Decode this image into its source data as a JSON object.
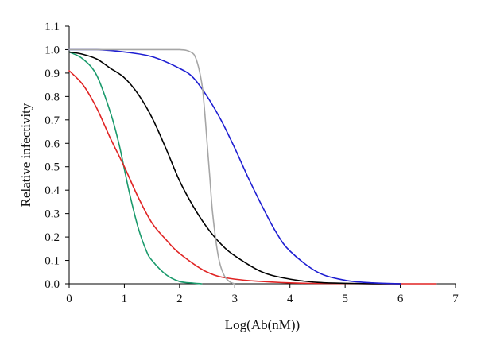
{
  "chart_data": {
    "type": "line",
    "title": "",
    "xlabel": "Log(Ab(nM))",
    "ylabel": "Relative infectivity",
    "xlim": [
      0,
      7
    ],
    "ylim": [
      0,
      1.1
    ],
    "xticks": [
      "0",
      "1",
      "2",
      "3",
      "4",
      "5",
      "6",
      "7"
    ],
    "yticks": [
      "0.0",
      "0.1",
      "0.2",
      "0.3",
      "0.4",
      "0.5",
      "0.6",
      "0.7",
      "0.8",
      "0.9",
      "1.0",
      "1.1"
    ],
    "grid": false,
    "legend": "none",
    "series": [
      {
        "color": "#1a9a6c",
        "x": [
          0,
          0.25,
          0.5,
          0.75,
          0.9,
          1.0,
          1.1,
          1.25,
          1.4,
          1.5,
          1.75,
          2.0,
          2.25,
          2.4
        ],
        "y": [
          0.99,
          0.96,
          0.89,
          0.73,
          0.6,
          0.49,
          0.38,
          0.24,
          0.14,
          0.1,
          0.04,
          0.01,
          0.003,
          0.0
        ]
      },
      {
        "color": "#e02424",
        "x": [
          0,
          0.25,
          0.5,
          0.75,
          1.0,
          1.25,
          1.5,
          1.75,
          2.0,
          2.5,
          3.0,
          4.0,
          5.0,
          6.0,
          6.65
        ],
        "y": [
          0.91,
          0.85,
          0.75,
          0.62,
          0.5,
          0.37,
          0.26,
          0.19,
          0.13,
          0.05,
          0.02,
          0.004,
          0.001,
          0.0,
          0.0
        ]
      },
      {
        "color": "#000000",
        "x": [
          0,
          0.25,
          0.5,
          0.75,
          1.0,
          1.25,
          1.5,
          1.75,
          2.0,
          2.25,
          2.5,
          2.75,
          3.0,
          3.5,
          4.0,
          4.5,
          5.0,
          5.5,
          6.0
        ],
        "y": [
          0.99,
          0.98,
          0.96,
          0.92,
          0.88,
          0.81,
          0.71,
          0.58,
          0.44,
          0.33,
          0.24,
          0.17,
          0.12,
          0.05,
          0.02,
          0.006,
          0.002,
          0.0,
          0.0
        ]
      },
      {
        "color": "#1e1ed2",
        "x": [
          0,
          0.5,
          1.0,
          1.5,
          2.0,
          2.25,
          2.5,
          2.75,
          3.0,
          3.25,
          3.5,
          3.75,
          4.0,
          4.5,
          5.0,
          5.5,
          6.0
        ],
        "y": [
          1.0,
          1.0,
          0.99,
          0.97,
          0.92,
          0.88,
          0.8,
          0.7,
          0.58,
          0.45,
          0.33,
          0.22,
          0.14,
          0.05,
          0.015,
          0.004,
          0.0
        ]
      },
      {
        "color": "#a6a6a6",
        "x": [
          0,
          1.0,
          1.5,
          2.0,
          2.2,
          2.3,
          2.4,
          2.45,
          2.5,
          2.55,
          2.6,
          2.7,
          2.8,
          2.9,
          3.0
        ],
        "y": [
          1.0,
          1.0,
          1.0,
          1.0,
          0.99,
          0.96,
          0.86,
          0.75,
          0.6,
          0.45,
          0.3,
          0.12,
          0.04,
          0.01,
          0.0
        ]
      }
    ]
  }
}
